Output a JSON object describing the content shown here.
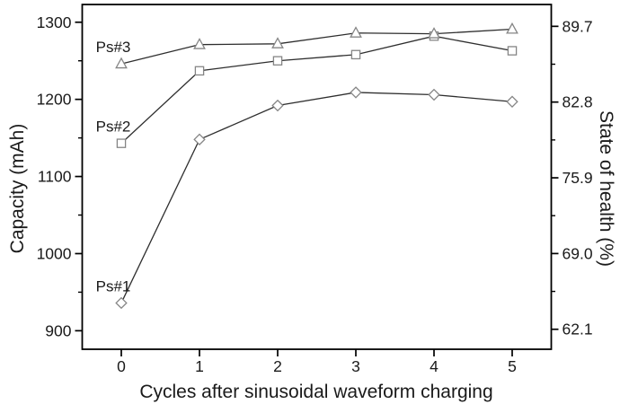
{
  "chart_data": {
    "type": "line",
    "title": "",
    "xlabel": "Cycles after sinusoidal waveform charging",
    "ylabel_left": "Capacity (mAh)",
    "ylabel_right": "State of health (%)",
    "x": [
      0,
      1,
      2,
      3,
      4,
      5
    ],
    "xlim": [
      -0.5,
      5.5
    ],
    "ylim_left": [
      876,
      1323
    ],
    "ylim_right": [
      60.28,
      91.69
    ],
    "grid": false,
    "legend": "inline-labels-at-first-point",
    "x_ticks": [
      {
        "value": 0,
        "label": "0"
      },
      {
        "value": 1,
        "label": "1"
      },
      {
        "value": 2,
        "label": "2"
      },
      {
        "value": 3,
        "label": "3"
      },
      {
        "value": 4,
        "label": "4"
      },
      {
        "value": 5,
        "label": "5"
      }
    ],
    "left_ticks": [
      {
        "value": 900,
        "label": "900"
      },
      {
        "value": 1000,
        "label": "1000"
      },
      {
        "value": 1100,
        "label": "1100"
      },
      {
        "value": 1200,
        "label": "1200"
      },
      {
        "value": 1300,
        "label": "1300"
      }
    ],
    "left_minor_ticks": [
      950,
      1050,
      1150,
      1250
    ],
    "right_ticks": [
      {
        "value": 62.1,
        "label": "62.1"
      },
      {
        "value": 69.0,
        "label": "69.0"
      },
      {
        "value": 75.9,
        "label": "75.9"
      },
      {
        "value": 82.8,
        "label": "82.8"
      },
      {
        "value": 89.7,
        "label": "89.7"
      }
    ],
    "right_minor_ticks": [
      65.55,
      72.45,
      79.35,
      86.25
    ],
    "series": [
      {
        "id": "ps1",
        "name": "Ps#1",
        "marker": "diamond",
        "axis": "left",
        "values": [
          936,
          1148,
          1192,
          1209,
          1206,
          1197
        ]
      },
      {
        "id": "ps2",
        "name": "Ps#2",
        "marker": "square",
        "axis": "left",
        "values": [
          1143,
          1237,
          1250,
          1258,
          1282,
          1263
        ]
      },
      {
        "id": "ps3",
        "name": "Ps#3",
        "marker": "triangle",
        "axis": "left",
        "values": [
          1246,
          1271,
          1272,
          1286,
          1285,
          1291
        ]
      }
    ],
    "colors": {
      "background": "#ffffff",
      "axis": "#000000",
      "text": "#1a1a1a",
      "line": "#2e2e2e",
      "marker_stroke": "#858585",
      "marker_fill": "#ffffff"
    }
  }
}
